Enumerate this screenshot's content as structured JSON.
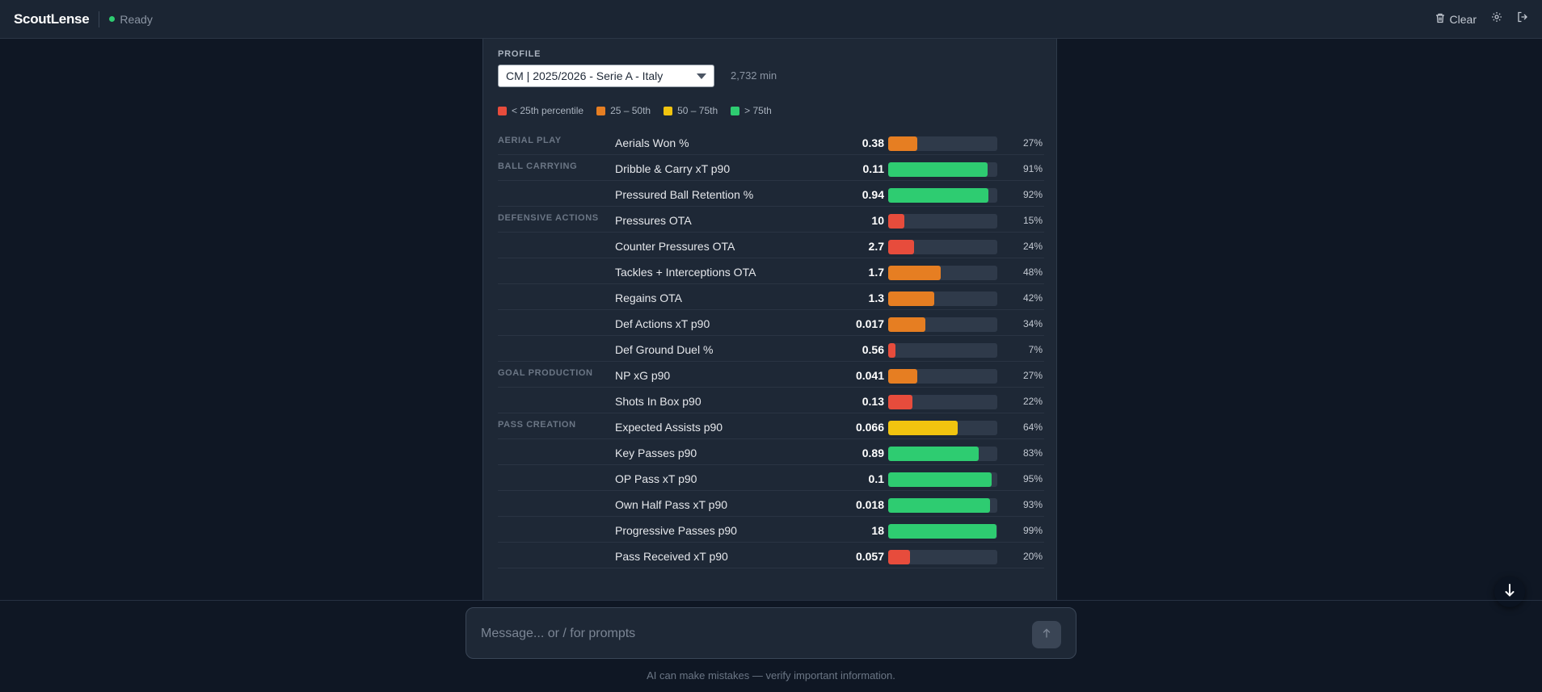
{
  "app": {
    "brand": "ScoutLense",
    "status": "Ready",
    "clear_label": "Clear"
  },
  "profile": {
    "label": "PROFILE",
    "selected": "CM | 2025/2026 - Serie A - Italy",
    "minutes": "2,732 min"
  },
  "legend": [
    {
      "label": "< 25th percentile",
      "color": "#e74c3c"
    },
    {
      "label": "25 – 50th",
      "color": "#e67e22"
    },
    {
      "label": "50 – 75th",
      "color": "#f1c40f"
    },
    {
      "label": "> 75th",
      "color": "#2ecc71"
    }
  ],
  "rows": [
    {
      "category": "AERIAL PLAY",
      "metric": "Aerials Won %",
      "value": "0.38",
      "percentile": 27,
      "pct_label": "27%"
    },
    {
      "category": "BALL CARRYING",
      "metric": "Dribble & Carry xT p90",
      "value": "0.11",
      "percentile": 91,
      "pct_label": "91%"
    },
    {
      "category": "",
      "metric": "Pressured Ball Retention %",
      "value": "0.94",
      "percentile": 92,
      "pct_label": "92%"
    },
    {
      "category": "DEFENSIVE ACTIONS",
      "metric": "Pressures OTA",
      "value": "10",
      "percentile": 15,
      "pct_label": "15%"
    },
    {
      "category": "",
      "metric": "Counter Pressures OTA",
      "value": "2.7",
      "percentile": 24,
      "pct_label": "24%"
    },
    {
      "category": "",
      "metric": "Tackles + Interceptions OTA",
      "value": "1.7",
      "percentile": 48,
      "pct_label": "48%"
    },
    {
      "category": "",
      "metric": "Regains OTA",
      "value": "1.3",
      "percentile": 42,
      "pct_label": "42%"
    },
    {
      "category": "",
      "metric": "Def Actions xT p90",
      "value": "0.017",
      "percentile": 34,
      "pct_label": "34%"
    },
    {
      "category": "",
      "metric": "Def Ground Duel %",
      "value": "0.56",
      "percentile": 7,
      "pct_label": "7%"
    },
    {
      "category": "GOAL PRODUCTION",
      "metric": "NP xG p90",
      "value": "0.041",
      "percentile": 27,
      "pct_label": "27%"
    },
    {
      "category": "",
      "metric": "Shots In Box p90",
      "value": "0.13",
      "percentile": 22,
      "pct_label": "22%"
    },
    {
      "category": "PASS CREATION",
      "metric": "Expected Assists p90",
      "value": "0.066",
      "percentile": 64,
      "pct_label": "64%"
    },
    {
      "category": "",
      "metric": "Key Passes p90",
      "value": "0.89",
      "percentile": 83,
      "pct_label": "83%"
    },
    {
      "category": "",
      "metric": "OP Pass xT p90",
      "value": "0.1",
      "percentile": 95,
      "pct_label": "95%"
    },
    {
      "category": "",
      "metric": "Own Half Pass xT p90",
      "value": "0.018",
      "percentile": 93,
      "pct_label": "93%"
    },
    {
      "category": "",
      "metric": "Progressive Passes p90",
      "value": "18",
      "percentile": 99,
      "pct_label": "99%"
    },
    {
      "category": "",
      "metric": "Pass Received xT p90",
      "value": "0.057",
      "percentile": 20,
      "pct_label": "20%"
    }
  ],
  "composer": {
    "placeholder": "Message... or / for prompts"
  },
  "disclaimer": "AI can make mistakes — verify important information.",
  "icons": {
    "clear": "trash-icon",
    "settings": "gear-icon",
    "logout": "logout-icon",
    "send": "arrow-up-icon",
    "scroll": "arrow-down-icon"
  }
}
